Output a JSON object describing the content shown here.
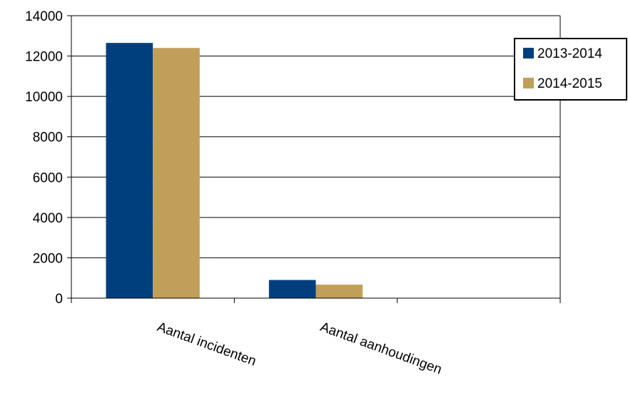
{
  "chart_data": {
    "type": "bar",
    "categories": [
      "Aantal incidenten",
      "Aantal aanhoudingen",
      ""
    ],
    "series": [
      {
        "name": "2013-2014",
        "color": "#003f7d",
        "values": [
          12650,
          900,
          0
        ]
      },
      {
        "name": "2014-2015",
        "color": "#c19f5a",
        "values": [
          12400,
          670,
          0
        ]
      }
    ],
    "yticks": [
      "0",
      "2000",
      "4000",
      "6000",
      "8000",
      "10000",
      "12000",
      "14000"
    ],
    "ylim": [
      0,
      14000
    ],
    "grid": true,
    "legend": "right"
  }
}
